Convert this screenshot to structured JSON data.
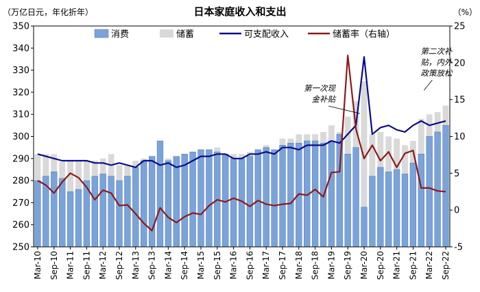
{
  "chart_data": {
    "type": "bar",
    "title": "日本家庭收入和支出",
    "left_axis_unit": "（万亿日元，年化折年）",
    "right_axis_unit": "（%）",
    "ylim": [
      250,
      350
    ],
    "y_ticks": [
      250,
      260,
      270,
      280,
      290,
      300,
      310,
      320,
      330,
      340,
      350
    ],
    "y2lim": [
      -5,
      25
    ],
    "y2_ticks": [
      -5,
      0,
      5,
      10,
      15,
      20,
      25
    ],
    "grid": false,
    "legend_position": "top",
    "x_labels": [
      "Mar-10",
      "Sep-10",
      "Mar-11",
      "Sep-11",
      "Mar-12",
      "Sep-12",
      "Mar-13",
      "Sep-13",
      "Mar-14",
      "Sep-14",
      "Mar-15",
      "Sep-15",
      "Mar-16",
      "Sep-16",
      "Mar-17",
      "Sep-17",
      "Mar-18",
      "Sep-18",
      "Mar-19",
      "Sep-19",
      "Mar-20",
      "Sep-20",
      "Mar-21",
      "Sep-21",
      "Mar-22",
      "Sep-22"
    ],
    "colors": {
      "consumption": "#7ba3d9",
      "consumption_edge": "#4a78b8",
      "saving": "#d9d9d9",
      "income": "#0a0a8a",
      "saving_rate": "#8b1a1a"
    },
    "series": [
      {
        "name": "消费",
        "type": "bar",
        "axis": "left",
        "values": [
          280,
          282,
          284,
          281,
          275,
          276,
          280,
          282,
          283,
          282,
          280,
          282,
          286,
          289,
          291,
          298,
          289,
          291,
          292,
          293,
          294,
          294,
          293,
          292,
          290,
          290,
          291,
          294,
          295,
          294,
          296,
          297,
          297,
          298,
          298,
          297,
          298,
          301,
          292,
          295,
          268,
          282,
          286,
          284,
          285,
          283,
          288,
          292,
          300,
          302,
          305
        ]
      },
      {
        "name": "储蓄",
        "type": "stack",
        "axis": "left",
        "values": [
          12,
          10,
          8,
          7.5,
          14,
          13,
          9,
          7,
          7,
          10,
          7,
          5,
          3,
          1,
          -2,
          -7,
          1,
          0,
          -3,
          -1,
          0,
          0,
          2,
          0,
          2,
          2,
          2,
          0,
          1,
          0,
          3,
          2,
          4,
          3,
          3,
          5,
          7,
          1,
          17,
          21,
          57,
          19,
          16,
          16,
          14,
          13,
          10,
          16,
          10,
          9,
          9
        ]
      },
      {
        "name": "可支配收入",
        "type": "line",
        "axis": "left",
        "values": [
          292,
          291,
          290,
          289,
          289,
          289,
          289,
          288,
          288,
          287,
          288,
          287,
          286,
          289,
          289,
          287,
          288,
          286,
          287,
          289,
          291,
          291,
          292,
          292,
          290,
          290,
          292,
          292,
          293,
          292,
          295,
          295,
          294,
          296,
          296,
          296,
          298,
          297,
          301,
          305,
          336,
          301,
          304,
          305,
          303,
          302,
          305,
          307,
          305,
          306,
          307
        ]
      },
      {
        "name": "储蓄率（右轴）",
        "type": "line",
        "axis": "right",
        "values": [
          4,
          3.4,
          2.3,
          3.8,
          5,
          4.4,
          3.1,
          1.4,
          2.7,
          2.3,
          0.6,
          0.7,
          -0.5,
          -1.8,
          -2.8,
          0.3,
          -1.0,
          -1.7,
          -0.9,
          -0.4,
          -0.6,
          0.6,
          1.4,
          1.1,
          1.6,
          1.2,
          0.5,
          1.3,
          0.8,
          0.6,
          0.8,
          0.9,
          2.2,
          2.0,
          2.8,
          1.8,
          5.1,
          5.2,
          21,
          11,
          7,
          8.8,
          6.7,
          7.9,
          5.8,
          7.7,
          8.1,
          3.0,
          3.0,
          2.6,
          2.5
        ]
      }
    ],
    "annotations": [
      {
        "text_lines": [
          "第一次现",
          "金补贴"
        ],
        "at_index": 40
      },
      {
        "text_lines": [
          "第二次补",
          "贴，内外",
          "政策放松"
        ],
        "at_index": 47
      }
    ]
  }
}
